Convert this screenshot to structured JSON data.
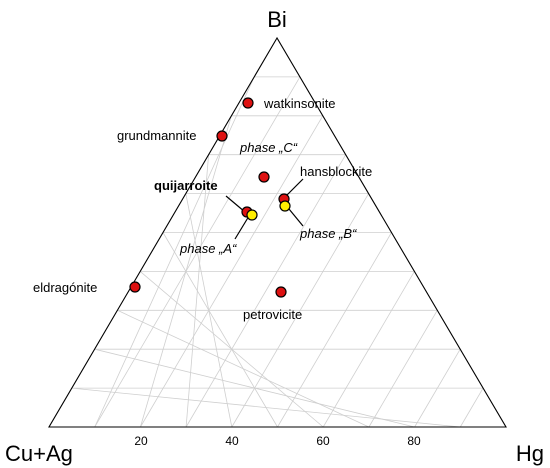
{
  "diagram": {
    "vertices": {
      "top": "Bi",
      "left": "Cu+Ag",
      "right": "Hg"
    },
    "ticks": [
      "20",
      "40",
      "60",
      "80"
    ],
    "colors": {
      "red_point": "#dd1111",
      "yellow_point": "#ffee00",
      "outline": "#000000",
      "grid": "#cfcfcf"
    },
    "points": [
      {
        "id": "watkinsonite",
        "label": "watkinsonite",
        "color": "red"
      },
      {
        "id": "grundmannite",
        "label": "grundmannite",
        "color": "red"
      },
      {
        "id": "phase-c",
        "label": "phase „C“",
        "color": "red"
      },
      {
        "id": "hansblockite",
        "label": "hansblockite",
        "color": "red"
      },
      {
        "id": "phase-b",
        "label": "phase „B“",
        "color": "yellow"
      },
      {
        "id": "quijarroite",
        "label": "quijarroite",
        "color": "red"
      },
      {
        "id": "phase-a",
        "label": "phase „A“",
        "color": "yellow"
      },
      {
        "id": "eldragonite",
        "label": "eldragónite",
        "color": "red"
      },
      {
        "id": "petrovicite",
        "label": "petrovicite",
        "color": "red"
      }
    ]
  }
}
